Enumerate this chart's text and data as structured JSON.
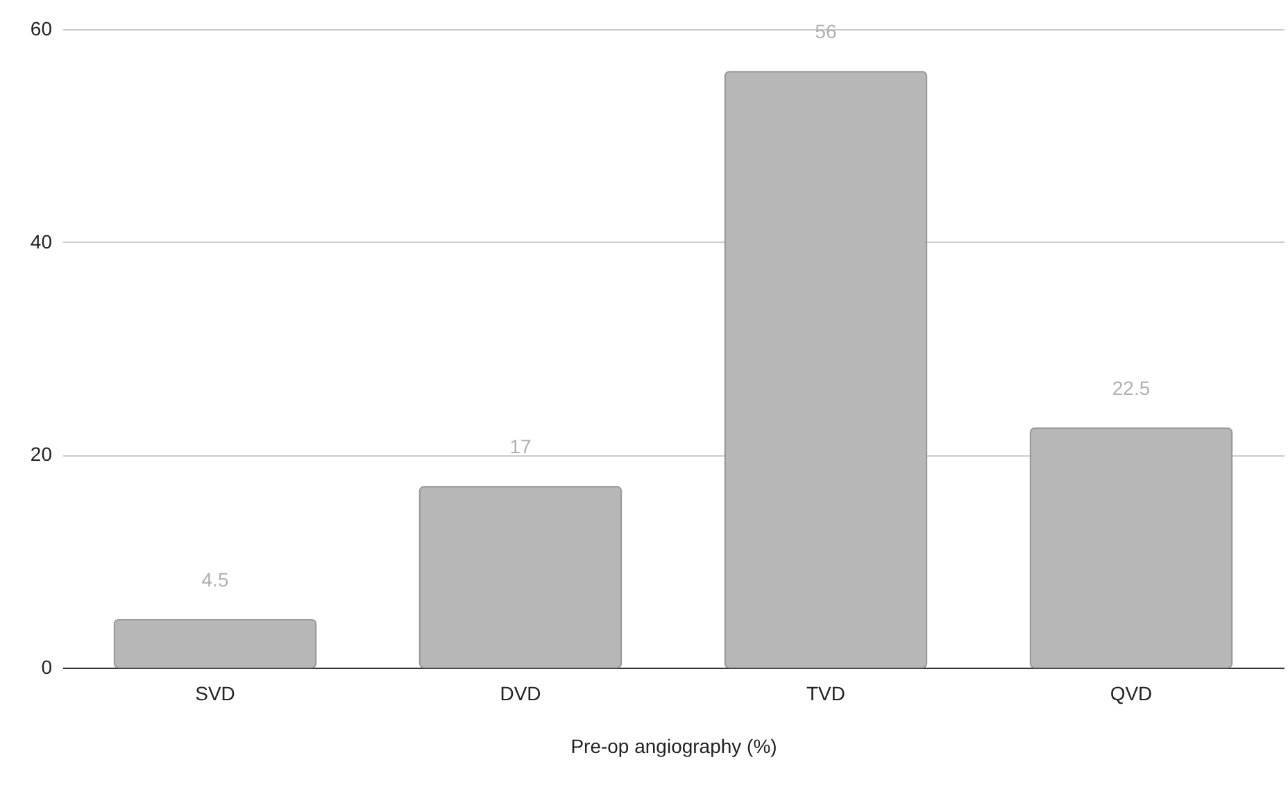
{
  "chart_data": {
    "type": "bar",
    "xlabel": "Pre-op angiography (%)",
    "categories": [
      "SVD",
      "DVD",
      "TVD",
      "QVD"
    ],
    "values": [
      4.5,
      17,
      56,
      22.5
    ],
    "color": "#b7b7b7",
    "ylim": [
      0,
      60
    ],
    "yticks": [
      0,
      20,
      40,
      60
    ],
    "grid": "y",
    "data_labels": true
  }
}
